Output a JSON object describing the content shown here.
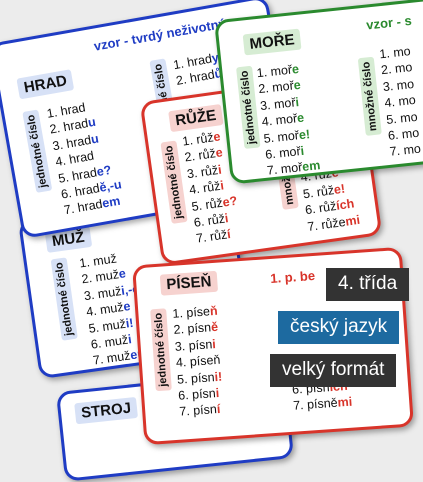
{
  "colors": {
    "blue": "#1f3cc4",
    "red": "#d8342a",
    "green": "#2a8a2e"
  },
  "cards": {
    "hrad": {
      "title": "HRAD",
      "subtitle": "vzor - tvrdý neživotný",
      "singular_label": "jednotné číslo",
      "singular": [
        {
          "stem": "1. hrad",
          "end": ""
        },
        {
          "stem": "2. hrad",
          "end": "u"
        },
        {
          "stem": "3. hrad",
          "end": "u"
        },
        {
          "stem": "4. hrad",
          "end": ""
        },
        {
          "stem": "5. hrad",
          "end": "e?"
        },
        {
          "stem": "6. hrad",
          "end": "ě,-u"
        },
        {
          "stem": "7. hrad",
          "end": "em"
        }
      ],
      "plural_label": "množné číslo",
      "plural": [
        {
          "stem": "1. hrad",
          "end": "y"
        },
        {
          "stem": "2. hrad",
          "end": "ů"
        }
      ]
    },
    "ruze": {
      "title": "RŮŽE",
      "singular_label": "jednotné číslo",
      "singular": [
        {
          "stem": "1. růž",
          "end": "e"
        },
        {
          "stem": "2. růž",
          "end": "e"
        },
        {
          "stem": "3. růž",
          "end": "i"
        },
        {
          "stem": "4. růž",
          "end": "i"
        },
        {
          "stem": "5. růž",
          "end": "e?"
        },
        {
          "stem": "6. růž",
          "end": "i"
        },
        {
          "stem": "7. růž",
          "end": "í"
        }
      ],
      "plural_label": "množné",
      "plural": [
        {
          "stem": "3. růž",
          "end": "ím"
        },
        {
          "stem": "4. růž",
          "end": "e"
        },
        {
          "stem": "5. růž",
          "end": "e!"
        },
        {
          "stem": "6. růž",
          "end": "ích"
        },
        {
          "stem": "7. růže",
          "end": "mi"
        }
      ]
    },
    "more": {
      "title": "MOŘE",
      "subtitle": "vzor - s",
      "singular_label": "jednotné číslo",
      "singular": [
        {
          "stem": "1. moř",
          "end": "e"
        },
        {
          "stem": "2. moř",
          "end": "e"
        },
        {
          "stem": "3. moř",
          "end": "i"
        },
        {
          "stem": "4. moř",
          "end": "e"
        },
        {
          "stem": "5. moř",
          "end": "e!"
        },
        {
          "stem": "6. moř",
          "end": "i"
        },
        {
          "stem": "7. moř",
          "end": "em"
        }
      ],
      "plural_label": "množné číslo",
      "plural": [
        {
          "stem": "1. mo",
          "end": ""
        },
        {
          "stem": "2. mo",
          "end": ""
        },
        {
          "stem": "3. mo",
          "end": ""
        },
        {
          "stem": "4. mo",
          "end": ""
        },
        {
          "stem": "5. mo",
          "end": ""
        },
        {
          "stem": "6. mo",
          "end": ""
        },
        {
          "stem": "7. mo",
          "end": ""
        }
      ]
    },
    "muz": {
      "title": "MUŽ",
      "singular_label": "jednotné číslo",
      "singular": [
        {
          "stem": "1. muž",
          "end": ""
        },
        {
          "stem": "2. muž",
          "end": "e"
        },
        {
          "stem": "3. muž",
          "end": "i,-ovi"
        },
        {
          "stem": "4. muž",
          "end": "e"
        },
        {
          "stem": "5. muž",
          "end": "i!"
        },
        {
          "stem": "6. muž",
          "end": "i"
        },
        {
          "stem": "7. muž",
          "end": "em"
        }
      ]
    },
    "psen": {
      "title": "PÍSEŇ",
      "subtitle": "1. p. be",
      "singular_label": "jednotné číslo",
      "singular": [
        {
          "stem": "1. píse",
          "end": "ň"
        },
        {
          "stem": "2. písn",
          "end": "ě"
        },
        {
          "stem": "3. písn",
          "end": "i"
        },
        {
          "stem": "4. píseň",
          "end": ""
        },
        {
          "stem": "5. písn",
          "end": "i!"
        },
        {
          "stem": "6. písn",
          "end": "i"
        },
        {
          "stem": "7. písn",
          "end": "í"
        }
      ],
      "plural": [
        {
          "stem": "6. písn",
          "end": "ích"
        },
        {
          "stem": "7. písně",
          "end": "mi"
        }
      ]
    },
    "stroj": {
      "title": "STROJ"
    }
  },
  "badges": {
    "grade": "4. třída",
    "subject": "český jazyk",
    "format": "velký formát"
  }
}
